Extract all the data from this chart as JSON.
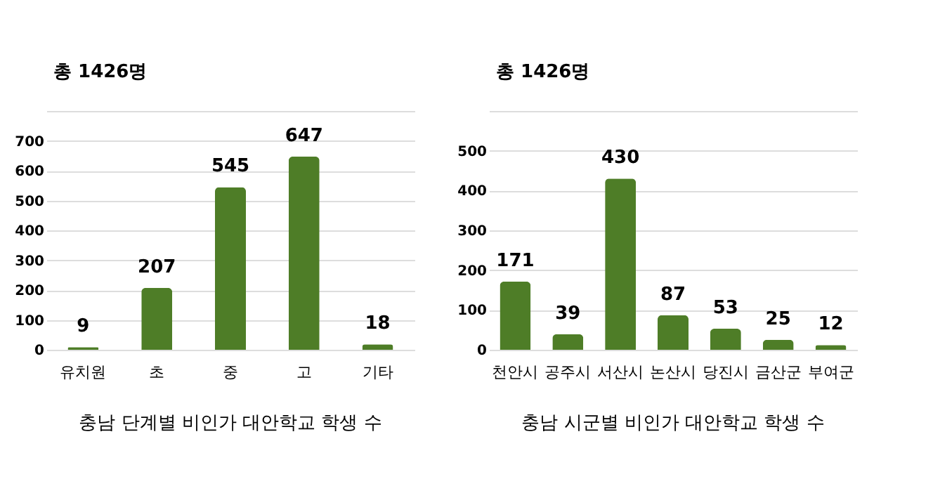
{
  "chart_data": [
    {
      "type": "bar",
      "title": "충남 단계별 비인가 대안학교 학생 수",
      "annotations": [
        "총 1426명"
      ],
      "categories": [
        "유치원",
        "초",
        "중",
        "고",
        "기타"
      ],
      "values": [
        9,
        207,
        545,
        647,
        18
      ],
      "color": "#4e7d27",
      "ylim": [
        0,
        800
      ],
      "yticks": [
        0,
        100,
        200,
        300,
        400,
        500,
        600,
        700,
        {
          "value": 800,
          "label": null
        }
      ],
      "grid": "y",
      "data_labels": true
    },
    {
      "type": "bar",
      "title": "충남 시군별 비인가 대안학교 학생 수",
      "annotations": [
        "총 1426명"
      ],
      "categories": [
        "천안시",
        "공주시",
        "서산시",
        "논산시",
        "당진시",
        "금산군",
        "부여군"
      ],
      "values": [
        171,
        39,
        430,
        87,
        53,
        25,
        12
      ],
      "color": "#4e7d27",
      "ylim": [
        0,
        600
      ],
      "yticks": [
        0,
        100,
        200,
        300,
        400,
        500,
        {
          "value": 600,
          "label": null
        }
      ],
      "grid": "y",
      "data_labels": true
    }
  ]
}
